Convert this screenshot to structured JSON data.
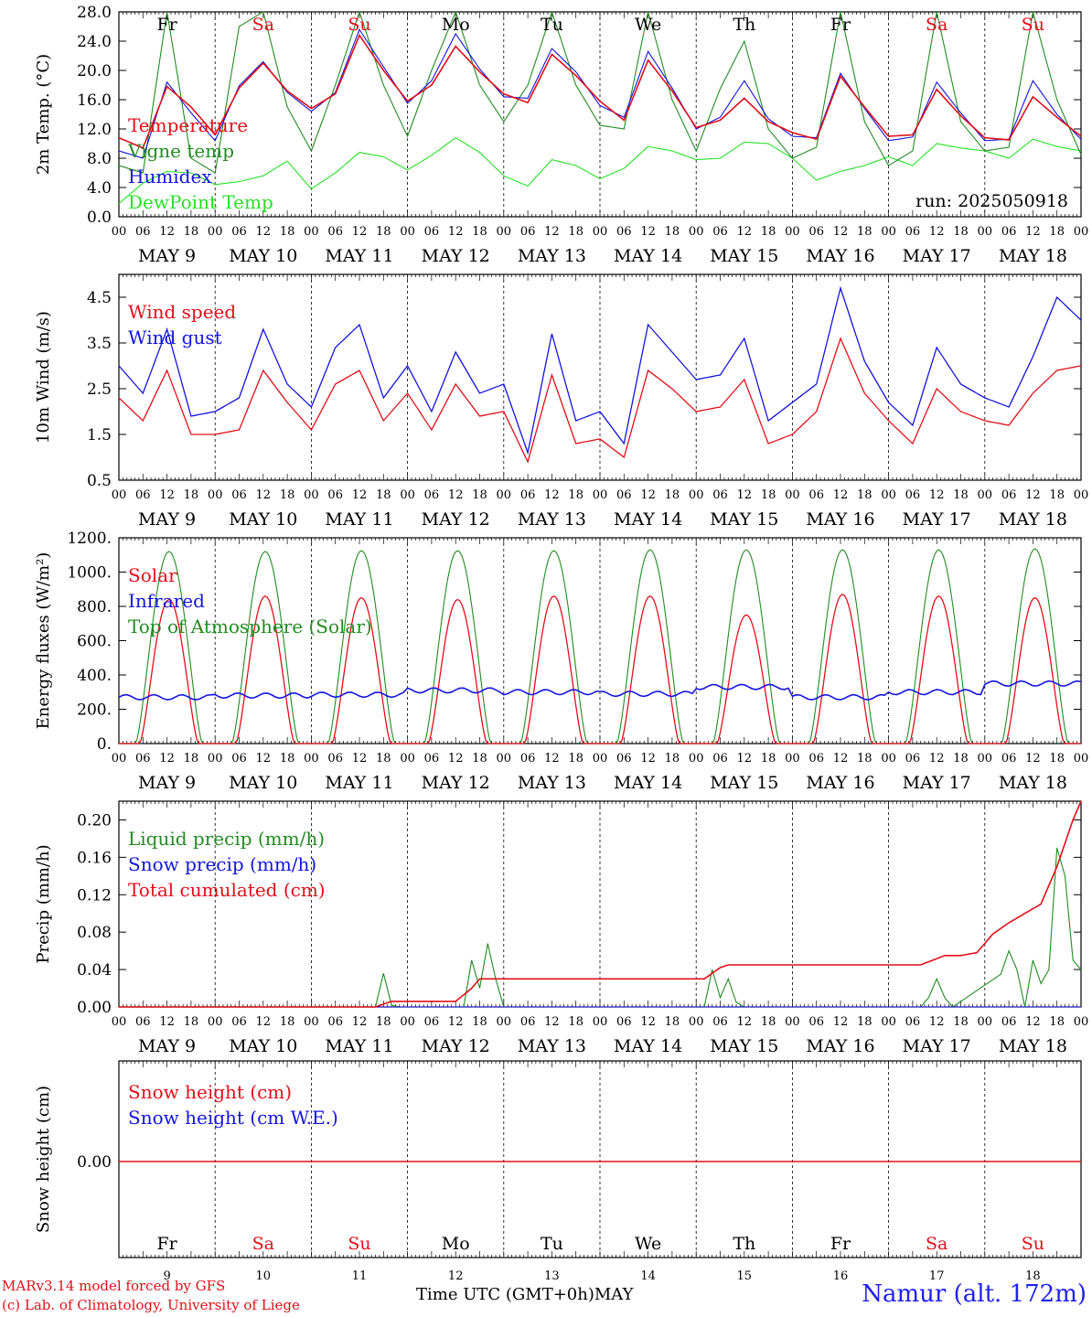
{
  "chart_data": [
    {
      "type": "line",
      "ylabel": "2m Temp. (°C)",
      "ylim": [
        0,
        28
      ],
      "yticks": [
        "0.0",
        "4.0",
        "8.0",
        "12.0",
        "16.0",
        "20.0",
        "24.0",
        "28.0"
      ],
      "ytick_values": [
        0,
        4,
        8,
        12,
        16,
        20,
        24,
        28
      ],
      "day_labels": [
        "Fr",
        "Sa",
        "Su",
        "Mo",
        "Tu",
        "We",
        "Th",
        "Fr",
        "Sa",
        "Su"
      ],
      "day_label_colors": [
        "#000000",
        "#e0101a",
        "#e0101a",
        "#000000",
        "#000000",
        "#000000",
        "#000000",
        "#000000",
        "#e0101a",
        "#e0101a"
      ],
      "annotation": "run: 2025050918",
      "x_hours": [
        0,
        6,
        12,
        18,
        24,
        30,
        36,
        42,
        48,
        54,
        60,
        66,
        72,
        78,
        84,
        90,
        96,
        102,
        108,
        114,
        120,
        126,
        132,
        138,
        144,
        150,
        156,
        162,
        168,
        174,
        180,
        186,
        192,
        198,
        204,
        210,
        216,
        222,
        228,
        234,
        240
      ],
      "series": [
        {
          "name": "Temperature",
          "color": "#e0101a",
          "values": [
            10.8,
            9.4,
            17.8,
            15.0,
            11.2,
            17.6,
            21.0,
            17.2,
            14.8,
            16.8,
            24.8,
            20.0,
            15.8,
            18.0,
            23.3,
            19.8,
            16.8,
            15.6,
            22.2,
            19.3,
            15.8,
            13.2,
            21.4,
            17.2,
            12.2,
            13.2,
            16.2,
            13.0,
            11.5,
            10.6,
            19.2,
            15.0,
            11.0,
            11.2,
            17.4,
            13.8,
            10.8,
            10.5,
            16.4,
            13.6,
            11.0
          ]
        },
        {
          "name": "Vigne temp",
          "color": "#228b22",
          "values": [
            7.0,
            6.0,
            28.0,
            8.0,
            6.0,
            26.0,
            28.0,
            15.0,
            9.0,
            18.0,
            28.0,
            18.0,
            11.0,
            20.0,
            28.0,
            18.0,
            13.0,
            18.0,
            28.0,
            18.0,
            12.5,
            12.0,
            28.0,
            16.0,
            9.0,
            17.5,
            24.0,
            12.0,
            8.0,
            9.5,
            28.0,
            13.0,
            7.0,
            9.0,
            28.0,
            13.0,
            9.0,
            9.5,
            28.0,
            16.0,
            8.5
          ]
        },
        {
          "name": "Humidex",
          "color": "#1414e0",
          "values": [
            9.0,
            8.0,
            18.4,
            14.2,
            10.4,
            17.9,
            21.2,
            17.0,
            14.4,
            17.0,
            25.6,
            20.5,
            15.5,
            18.6,
            25.0,
            20.2,
            16.4,
            16.2,
            23.0,
            19.8,
            15.2,
            13.6,
            22.6,
            17.6,
            12.0,
            13.6,
            18.6,
            13.4,
            11.0,
            10.8,
            19.6,
            14.8,
            10.4,
            10.9,
            18.4,
            14.2,
            10.4,
            10.6,
            18.6,
            14.0,
            10.6
          ]
        },
        {
          "name": "DewPoint Temp",
          "color": "#27e027",
          "values": [
            1.8,
            4.6,
            6.2,
            6.0,
            4.4,
            4.8,
            5.6,
            7.6,
            3.8,
            6.0,
            8.8,
            8.2,
            6.4,
            8.4,
            10.8,
            8.8,
            5.6,
            4.2,
            7.8,
            7.0,
            5.2,
            6.6,
            9.6,
            9.0,
            7.8,
            8.0,
            10.2,
            10.0,
            8.0,
            5.0,
            6.2,
            7.0,
            8.2,
            7.0,
            10.0,
            9.4,
            9.0,
            8.0,
            10.6,
            9.6,
            9.0
          ]
        }
      ]
    },
    {
      "type": "line",
      "ylabel": "10m Wind (m/s)",
      "ylim": [
        0.5,
        5.0
      ],
      "yticks": [
        "0.5",
        "1.5",
        "2.5",
        "3.5",
        "4.5"
      ],
      "ytick_values": [
        0.5,
        1.5,
        2.5,
        3.5,
        4.5
      ],
      "x_hours": [
        0,
        6,
        12,
        18,
        24,
        30,
        36,
        42,
        48,
        54,
        60,
        66,
        72,
        78,
        84,
        90,
        96,
        102,
        108,
        114,
        120,
        126,
        132,
        138,
        144,
        150,
        156,
        162,
        168,
        174,
        180,
        186,
        192,
        198,
        204,
        210,
        216,
        222,
        228,
        234,
        240
      ],
      "series": [
        {
          "name": "Wind speed",
          "color": "#e0101a",
          "values": [
            2.3,
            1.8,
            2.9,
            1.5,
            1.5,
            1.6,
            2.9,
            2.2,
            1.6,
            2.6,
            2.9,
            1.8,
            2.4,
            1.6,
            2.6,
            1.9,
            2.0,
            0.9,
            2.8,
            1.3,
            1.4,
            1.0,
            2.9,
            2.5,
            2.0,
            2.1,
            2.7,
            1.3,
            1.5,
            2.0,
            3.6,
            2.4,
            1.8,
            1.3,
            2.5,
            2.0,
            1.8,
            1.7,
            2.4,
            2.9,
            3.0
          ]
        },
        {
          "name": "Wind gust",
          "color": "#1414e0",
          "values": [
            3.0,
            2.4,
            3.8,
            1.9,
            2.0,
            2.3,
            3.8,
            2.6,
            2.1,
            3.4,
            3.9,
            2.3,
            3.0,
            2.0,
            3.3,
            2.4,
            2.6,
            1.1,
            3.7,
            1.8,
            2.0,
            1.3,
            3.9,
            3.3,
            2.7,
            2.8,
            3.6,
            1.8,
            2.2,
            2.6,
            4.7,
            3.1,
            2.2,
            1.7,
            3.4,
            2.6,
            2.3,
            2.1,
            3.2,
            4.5,
            4.0
          ]
        }
      ]
    },
    {
      "type": "line",
      "ylabel": "Energy fluxes (W/m²)",
      "ylim": [
        0,
        1200
      ],
      "yticks": [
        "0.",
        "200.",
        "400.",
        "600.",
        "800.",
        "1000.",
        "1200."
      ],
      "ytick_values": [
        0,
        200,
        400,
        600,
        800,
        1000,
        1200
      ],
      "series": [
        {
          "name": "Solar",
          "color": "#e0101a",
          "daily_peaks": [
            840,
            860,
            850,
            840,
            860,
            860,
            750,
            870,
            860,
            850
          ]
        },
        {
          "name": "Infrared",
          "color": "#1414e0",
          "daily_levels": [
            270,
            280,
            285,
            310,
            300,
            290,
            330,
            270,
            300,
            350
          ]
        },
        {
          "name": "Top of Atmosphere (Solar)",
          "color": "#228b22",
          "daily_peaks": [
            1120,
            1120,
            1125,
            1125,
            1125,
            1130,
            1130,
            1130,
            1130,
            1135
          ]
        }
      ]
    },
    {
      "type": "line",
      "ylabel": "Precip (mm/h)",
      "ylim": [
        0,
        0.22
      ],
      "yticks": [
        "0.00",
        "0.04",
        "0.08",
        "0.12",
        "0.16",
        "0.20"
      ],
      "ytick_values": [
        0,
        0.04,
        0.08,
        0.12,
        0.16,
        0.2
      ],
      "series": [
        {
          "name": "Liquid precip (mm/h)",
          "color": "#228b22",
          "x_hours": [
            0,
            64,
            66,
            68,
            70,
            86,
            88,
            90,
            92,
            94,
            96,
            146,
            148,
            150,
            152,
            154,
            156,
            200,
            202,
            204,
            206,
            208,
            220,
            222,
            224,
            226,
            228,
            230,
            232,
            234,
            236,
            238,
            240
          ],
          "values": [
            0,
            0,
            0.036,
            0.002,
            0,
            0,
            0.05,
            0.02,
            0.068,
            0.03,
            0,
            0,
            0.04,
            0.01,
            0.03,
            0.005,
            0,
            0,
            0.01,
            0.03,
            0.01,
            0,
            0.035,
            0.06,
            0.04,
            0,
            0.05,
            0.025,
            0.04,
            0.17,
            0.14,
            0.05,
            0.04
          ]
        },
        {
          "name": "Snow precip (mm/h)",
          "color": "#1414e0",
          "x_hours": [
            0,
            240
          ],
          "values": [
            0,
            0
          ]
        },
        {
          "name": "Total cumulated (cm)",
          "color": "#e0101a",
          "x_hours": [
            0,
            64,
            68,
            84,
            88,
            90,
            146,
            150,
            152,
            200,
            206,
            210,
            214,
            218,
            222,
            226,
            230,
            234,
            238,
            240
          ],
          "values": [
            0,
            0,
            0.006,
            0.006,
            0.02,
            0.03,
            0.03,
            0.042,
            0.045,
            0.045,
            0.055,
            0.055,
            0.058,
            0.078,
            0.09,
            0.1,
            0.11,
            0.15,
            0.2,
            0.22
          ]
        }
      ]
    },
    {
      "type": "line",
      "ylabel": "Snow height (cm)",
      "yticks": [
        "0.00"
      ],
      "ytick_values": [
        0
      ],
      "bottom_day_labels": [
        "Fr",
        "Sa",
        "Su",
        "Mo",
        "Tu",
        "We",
        "Th",
        "Fr",
        "Sa",
        "Su"
      ],
      "bottom_day_colors": [
        "#000000",
        "#e0101a",
        "#e0101a",
        "#000000",
        "#000000",
        "#000000",
        "#000000",
        "#000000",
        "#e0101a",
        "#e0101a"
      ],
      "bottom_date_numbers": [
        "9",
        "10",
        "11",
        "12",
        "13",
        "14",
        "15",
        "16",
        "17",
        "18"
      ],
      "series": [
        {
          "name": "Snow height (cm)",
          "color": "#e0101a",
          "values": [
            0,
            0
          ]
        },
        {
          "name": "Snow height (cm W.E.)",
          "color": "#1414e0",
          "values": [
            0,
            0
          ]
        }
      ]
    }
  ],
  "x_axis": {
    "hour_ticks": [
      "00",
      "06",
      "12",
      "18"
    ],
    "final_tick": "00",
    "date_labels": [
      "MAY  9",
      "MAY 10",
      "MAY 11",
      "MAY 12",
      "MAY 13",
      "MAY 14",
      "MAY 15",
      "MAY 16",
      "MAY 17",
      "MAY 18"
    ],
    "title": "Time UTC (GMT+0h)",
    "title_suffix": "MAY"
  },
  "footer": {
    "credit_line1": "MARv3.14 model forced by GFS",
    "credit_line2": "(c) Lab. of Climatology, University of Liege",
    "station": "Namur (alt. 172m)"
  }
}
